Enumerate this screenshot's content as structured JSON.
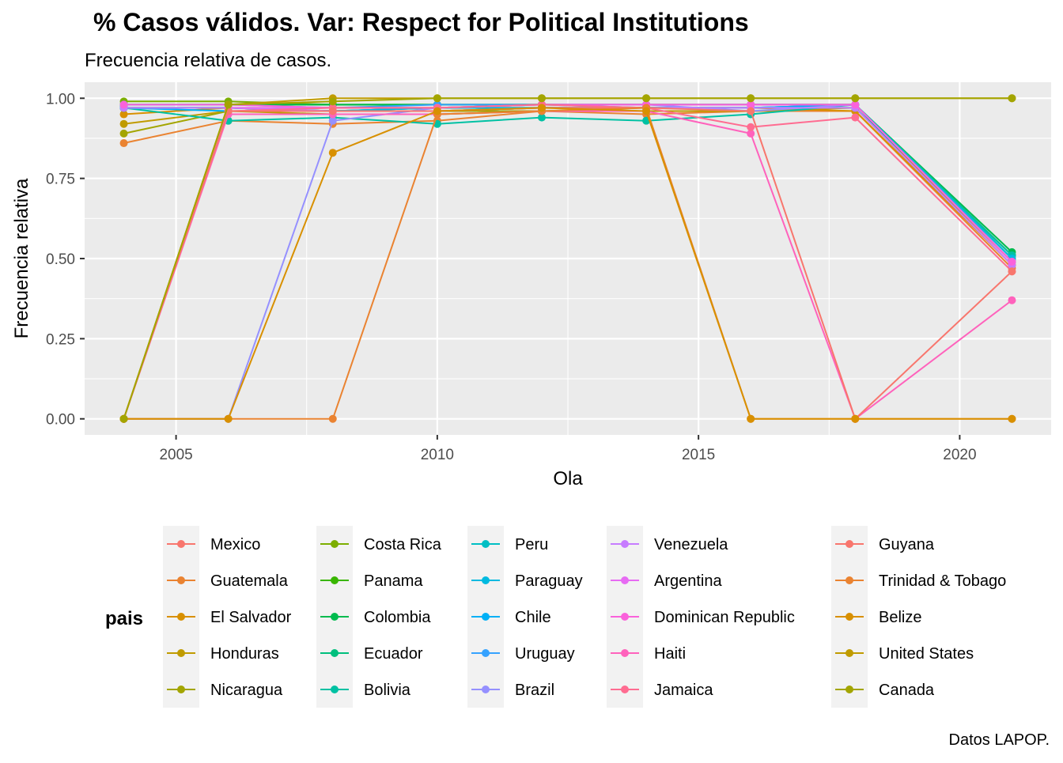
{
  "chart_data": {
    "type": "line",
    "title": "% Casos válidos. Var: Respect for Political Institutions",
    "subtitle": "Frecuencia relativa de casos.",
    "xlabel": "Ola",
    "ylabel": "Frecuencia relativa",
    "caption": "Datos LAPOP.",
    "legend_title": "pais",
    "legend_position": "bottom",
    "grid": true,
    "xlim": [
      2003.25,
      2021.75
    ],
    "ylim": [
      -0.05,
      1.05
    ],
    "x_ticks": [
      2005,
      2010,
      2015,
      2020
    ],
    "x_tick_labels": [
      "2005",
      "2010",
      "2015",
      "2020"
    ],
    "y_ticks": [
      0,
      0.25,
      0.5,
      0.75,
      1
    ],
    "y_tick_labels": [
      "0.00",
      "0.25",
      "0.50",
      "0.75",
      "1.00"
    ],
    "x": [
      2004,
      2006,
      2008,
      2010,
      2012,
      2014,
      2016,
      2018,
      2021
    ],
    "series": [
      {
        "name": "Mexico",
        "color": "#F8766D",
        "values": [
          0.97,
          0.97,
          0.97,
          0.97,
          0.97,
          0.97,
          0.97,
          0.97,
          0.48
        ]
      },
      {
        "name": "Guatemala",
        "color": "#EA8331",
        "values": [
          0.86,
          0.93,
          0.92,
          0.93,
          0.96,
          0.95,
          0.96,
          0.96,
          0.47
        ]
      },
      {
        "name": "El Salvador",
        "color": "#D89000",
        "values": [
          0.95,
          0.97,
          0.96,
          0.96,
          0.97,
          0.97,
          0.97,
          0.96,
          0.48
        ]
      },
      {
        "name": "Honduras",
        "color": "#C09B00",
        "values": [
          0.92,
          0.96,
          0.95,
          0.95,
          0.96,
          0.96,
          0.96,
          0.97,
          0.49
        ]
      },
      {
        "name": "Nicaragua",
        "color": "#A3A500",
        "values": [
          0.89,
          0.96,
          0.96,
          0.96,
          0.96,
          0.97,
          0.97,
          0.97,
          0.49
        ]
      },
      {
        "name": "Costa Rica",
        "color": "#7CAE00",
        "values": [
          0.99,
          0.99,
          0.98,
          0.98,
          0.98,
          0.98,
          0.98,
          0.98,
          0.5
        ]
      },
      {
        "name": "Panama",
        "color": "#39B600",
        "values": [
          0.98,
          0.98,
          0.98,
          0.98,
          0.98,
          0.98,
          0.98,
          0.98,
          0.51
        ]
      },
      {
        "name": "Colombia",
        "color": "#00BB4E",
        "values": [
          0.98,
          0.98,
          0.98,
          0.98,
          0.98,
          0.98,
          0.98,
          0.98,
          0.52
        ]
      },
      {
        "name": "Ecuador",
        "color": "#00BF7D",
        "values": [
          0.97,
          0.97,
          0.96,
          0.97,
          0.97,
          0.97,
          0.97,
          0.97,
          0.51
        ]
      },
      {
        "name": "Bolivia",
        "color": "#00C1A3",
        "values": [
          0.97,
          0.93,
          0.94,
          0.92,
          0.94,
          0.93,
          0.95,
          0.98,
          0.51
        ]
      },
      {
        "name": "Peru",
        "color": "#00BFC4",
        "values": [
          0.97,
          0.97,
          0.96,
          0.97,
          0.98,
          0.97,
          0.97,
          0.98,
          0.5
        ]
      },
      {
        "name": "Paraguay",
        "color": "#00BAE0",
        "values": [
          0.97,
          0.97,
          0.96,
          0.97,
          0.97,
          0.97,
          0.97,
          0.98,
          0.5
        ]
      },
      {
        "name": "Chile",
        "color": "#00B0F6",
        "values": [
          0.97,
          0.96,
          0.96,
          0.96,
          0.97,
          0.97,
          0.97,
          0.98,
          0.49
        ]
      },
      {
        "name": "Uruguay",
        "color": "#35A2FF",
        "values": [
          0.98,
          0.98,
          0.97,
          0.98,
          0.98,
          0.98,
          0.98,
          0.98,
          0.49
        ]
      },
      {
        "name": "Brazil",
        "color": "#9590FF",
        "values": [
          0.0,
          0.0,
          0.93,
          0.97,
          0.98,
          0.98,
          0.96,
          0.98,
          0.49
        ]
      },
      {
        "name": "Venezuela",
        "color": "#C77CFF",
        "values": [
          0.97,
          0.97,
          0.96,
          0.96,
          0.97,
          0.97,
          0.97,
          0.97,
          0.48
        ]
      },
      {
        "name": "Argentina",
        "color": "#E76BF3",
        "values": [
          0.0,
          0.97,
          0.97,
          0.97,
          0.98,
          0.98,
          0.98,
          0.98,
          0.49
        ]
      },
      {
        "name": "Dominican Republic",
        "color": "#FA62DB",
        "values": [
          0.98,
          0.98,
          0.97,
          0.97,
          0.98,
          0.98,
          0.98,
          0.98,
          0.49
        ]
      },
      {
        "name": "Haiti",
        "color": "#FF62BC",
        "values": [
          0.0,
          0.95,
          0.95,
          0.95,
          0.96,
          0.96,
          0.89,
          0.0,
          0.37
        ]
      },
      {
        "name": "Jamaica",
        "color": "#FF6C91",
        "values": [
          0.0,
          0.96,
          0.97,
          0.97,
          0.98,
          0.97,
          0.91,
          0.94,
          0.46
        ]
      },
      {
        "name": "Guyana",
        "color": "#F8766D",
        "values": [
          0.0,
          0.96,
          0.96,
          0.96,
          0.97,
          0.97,
          0.96,
          0.0,
          0.46
        ]
      },
      {
        "name": "Trinidad & Tobago",
        "color": "#EA8331",
        "values": [
          0.0,
          0.0,
          0.0,
          0.95,
          0.96,
          0.97,
          0.0,
          0.0,
          0.0
        ]
      },
      {
        "name": "Belize",
        "color": "#D89000",
        "values": [
          0.0,
          0.0,
          0.83,
          0.96,
          0.97,
          0.96,
          0.0,
          0.0,
          0.0
        ]
      },
      {
        "name": "United States",
        "color": "#C09B00",
        "values": [
          0.0,
          0.98,
          1.0,
          1.0,
          1.0,
          1.0,
          1.0,
          1.0,
          1.0
        ]
      },
      {
        "name": "Canada",
        "color": "#A3A500",
        "values": [
          0.0,
          0.98,
          0.99,
          1.0,
          1.0,
          1.0,
          1.0,
          1.0,
          1.0
        ]
      }
    ]
  }
}
